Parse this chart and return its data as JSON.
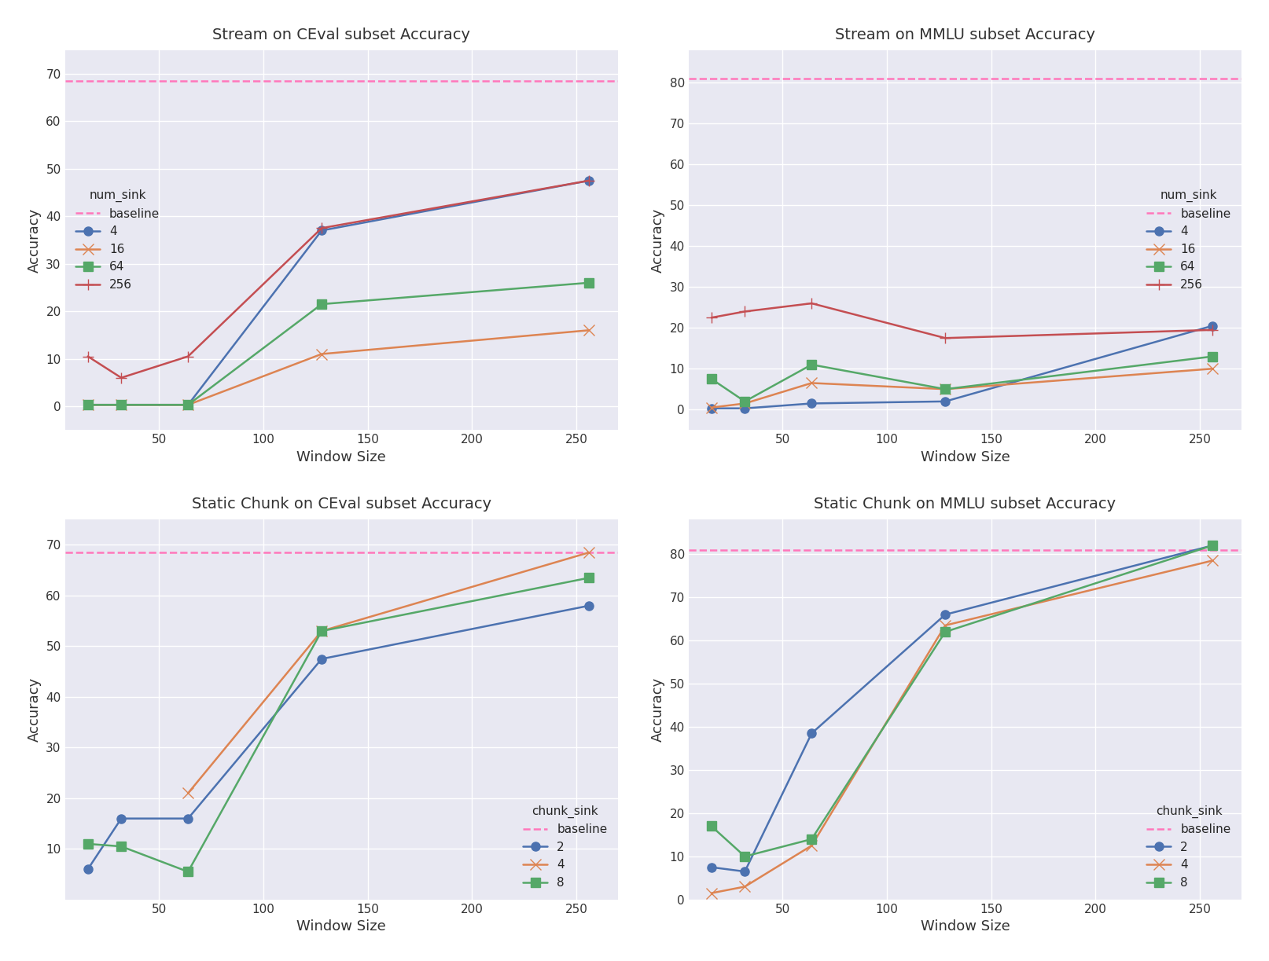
{
  "stream_ceval": {
    "title": "Stream on CEval subset Accuracy",
    "baseline": 68.5,
    "x": [
      16,
      32,
      64,
      128,
      256
    ],
    "series": {
      "4": {
        "color": "#4c72b0",
        "marker": "o",
        "values": [
          0.3,
          0.3,
          0.3,
          37.0,
          47.5
        ]
      },
      "16": {
        "color": "#dd8452",
        "marker": "x",
        "values": [
          0.3,
          0.3,
          0.3,
          11.0,
          16.0
        ]
      },
      "64": {
        "color": "#55a868",
        "marker": "s",
        "values": [
          0.3,
          0.3,
          0.3,
          21.5,
          26.0
        ]
      },
      "256": {
        "color": "#c44e52",
        "marker": "+",
        "values": [
          10.5,
          6.0,
          10.5,
          37.5,
          47.5
        ]
      }
    },
    "xlabel": "Window Size",
    "ylabel": "Accuracy",
    "legend_title": "num_sink",
    "legend_loc": "center left",
    "ylim": [
      -5,
      75
    ],
    "yticks": [
      0,
      10,
      20,
      30,
      40,
      50,
      60,
      70
    ]
  },
  "stream_mmlu": {
    "title": "Stream on MMLU subset Accuracy",
    "baseline": 81.0,
    "x": [
      16,
      32,
      64,
      128,
      256
    ],
    "series": {
      "4": {
        "color": "#4c72b0",
        "marker": "o",
        "values": [
          0.3,
          0.3,
          1.5,
          2.0,
          20.5
        ]
      },
      "16": {
        "color": "#dd8452",
        "marker": "x",
        "values": [
          0.5,
          1.5,
          6.5,
          5.0,
          10.0
        ]
      },
      "64": {
        "color": "#55a868",
        "marker": "s",
        "values": [
          7.5,
          2.0,
          11.0,
          5.0,
          13.0
        ]
      },
      "256": {
        "color": "#c44e52",
        "marker": "+",
        "values": [
          22.5,
          24.0,
          26.0,
          17.5,
          19.5
        ]
      }
    },
    "xlabel": "Window Size",
    "ylabel": "Accuracy",
    "legend_title": "num_sink",
    "legend_loc": "center right",
    "ylim": [
      -5,
      88
    ],
    "yticks": [
      0,
      10,
      20,
      30,
      40,
      50,
      60,
      70,
      80
    ]
  },
  "chunk_ceval": {
    "title": "Static Chunk on CEval subset Accuracy",
    "baseline": 68.5,
    "x": [
      16,
      32,
      64,
      128,
      256
    ],
    "series": {
      "2": {
        "color": "#4c72b0",
        "marker": "o",
        "values": [
          6.0,
          16.0,
          16.0,
          47.5,
          58.0
        ]
      },
      "4": {
        "color": "#dd8452",
        "marker": "x",
        "values": [
          null,
          null,
          21.0,
          53.0,
          68.5
        ]
      },
      "8": {
        "color": "#55a868",
        "marker": "s",
        "values": [
          11.0,
          10.5,
          5.5,
          53.0,
          63.5
        ]
      }
    },
    "xlabel": "Window Size",
    "ylabel": "Accuracy",
    "legend_title": "chunk_sink",
    "legend_loc": "lower right",
    "ylim": [
      0,
      75
    ],
    "yticks": [
      10,
      20,
      30,
      40,
      50,
      60,
      70
    ]
  },
  "chunk_mmlu": {
    "title": "Static Chunk on MMLU subset Accuracy",
    "baseline": 81.0,
    "x": [
      16,
      32,
      64,
      128,
      256
    ],
    "series": {
      "2": {
        "color": "#4c72b0",
        "marker": "o",
        "values": [
          7.5,
          6.5,
          38.5,
          66.0,
          82.0
        ]
      },
      "4": {
        "color": "#dd8452",
        "marker": "x",
        "values": [
          1.5,
          3.0,
          12.5,
          63.5,
          78.5
        ]
      },
      "8": {
        "color": "#55a868",
        "marker": "s",
        "values": [
          17.0,
          10.0,
          14.0,
          62.0,
          82.0
        ]
      }
    },
    "xlabel": "Window Size",
    "ylabel": "Accuracy",
    "legend_title": "chunk_sink",
    "legend_loc": "lower right",
    "ylim": [
      0,
      88
    ],
    "yticks": [
      0,
      10,
      20,
      30,
      40,
      50,
      60,
      70,
      80
    ]
  },
  "bg_color": "#e8e8f2",
  "figure_bg": "#ffffff",
  "baseline_color": "#ff77bb",
  "xticks": [
    50,
    100,
    150,
    200,
    250
  ],
  "xlim": [
    5,
    270
  ]
}
